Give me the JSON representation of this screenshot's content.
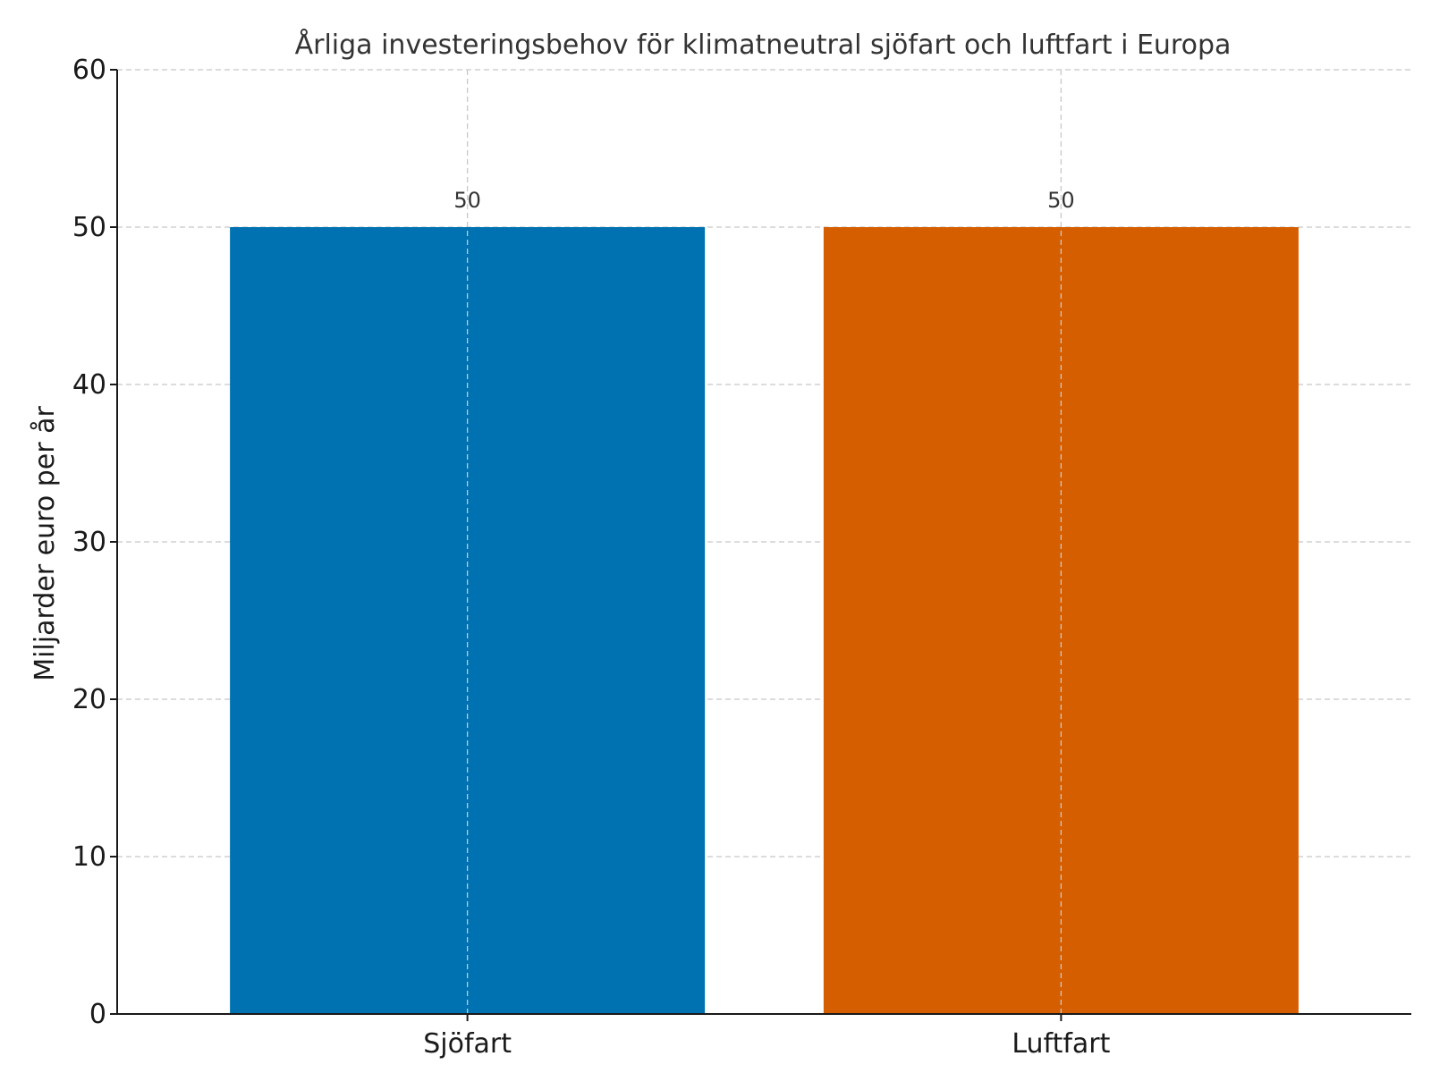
{
  "chart_data": {
    "type": "bar",
    "title": "Årliga investeringsbehov för klimatneutral sjöfart och luftfart i Europa",
    "xlabel": "",
    "ylabel": "Miljarder euro per år",
    "categories": [
      "Sjöfart",
      "Luftfart"
    ],
    "values": [
      50,
      50
    ],
    "value_labels": [
      "50",
      "50"
    ],
    "colors": [
      "#0072B2",
      "#D55E00"
    ],
    "ylim": [
      0,
      60
    ],
    "yticks": [
      0,
      10,
      20,
      30,
      40,
      50,
      60
    ],
    "ytick_labels": [
      "0",
      "10",
      "20",
      "30",
      "40",
      "50",
      "60"
    ],
    "grid": true,
    "legend": "none"
  }
}
